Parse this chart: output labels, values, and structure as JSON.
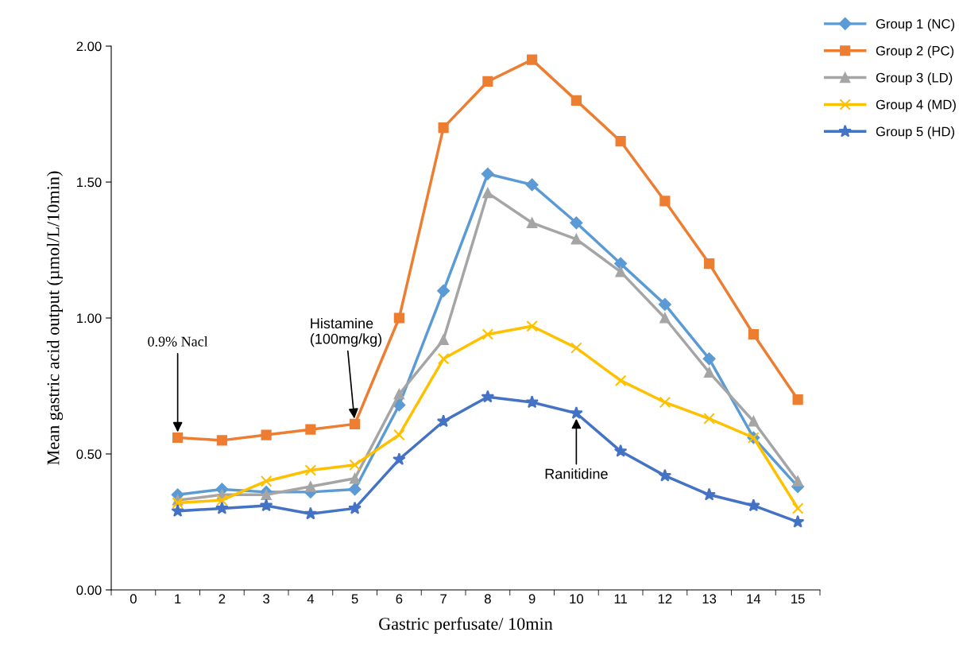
{
  "chart_data": {
    "type": "line",
    "xlabel": "Gastric perfusate/ 10min",
    "ylabel": "Mean gastric acid output (µmol/L/10min)",
    "categories": [
      "0",
      "1",
      "2",
      "3",
      "4",
      "5",
      "6",
      "7",
      "8",
      "9",
      "10",
      "11",
      "12",
      "13",
      "14",
      "15"
    ],
    "ylim": [
      0,
      2
    ],
    "yticks": [
      {
        "value": 0,
        "label": "0.00"
      },
      {
        "value": 0.5,
        "label": "0.50"
      },
      {
        "value": 1,
        "label": "1.00"
      },
      {
        "value": 1.5,
        "label": "1.50"
      },
      {
        "value": 2,
        "label": "2.00"
      }
    ],
    "grid": false,
    "legend": "top right",
    "series": [
      {
        "name": "Group 1 (NC)",
        "color": "#5b9bd5",
        "marker": "diamond",
        "values": [
          null,
          0.35,
          0.37,
          0.36,
          0.36,
          0.37,
          0.68,
          1.1,
          1.53,
          1.49,
          1.35,
          1.2,
          1.05,
          0.85,
          0.56,
          0.38
        ]
      },
      {
        "name": "Group 2 (PC)",
        "color": "#ed7d31",
        "marker": "square",
        "values": [
          null,
          0.56,
          0.55,
          0.57,
          0.59,
          0.61,
          1.0,
          1.7,
          1.87,
          1.95,
          1.8,
          1.65,
          1.43,
          1.2,
          0.94,
          0.7
        ]
      },
      {
        "name": "Group 3 (LD)",
        "color": "#a5a5a5",
        "marker": "triangle",
        "values": [
          null,
          0.33,
          0.35,
          0.35,
          0.38,
          0.41,
          0.72,
          0.92,
          1.46,
          1.35,
          1.29,
          1.17,
          1.0,
          0.8,
          0.62,
          0.4
        ]
      },
      {
        "name": "Group 4 (MD)",
        "color": "#ffc000",
        "marker": "cross",
        "values": [
          null,
          0.32,
          0.33,
          0.4,
          0.44,
          0.46,
          0.57,
          0.85,
          0.94,
          0.97,
          0.89,
          0.77,
          0.69,
          0.63,
          0.56,
          0.3
        ]
      },
      {
        "name": "Group 5 (HD)",
        "color": "#4472c4",
        "marker": "star",
        "values": [
          null,
          0.29,
          0.3,
          0.31,
          0.28,
          0.3,
          0.48,
          0.62,
          0.71,
          0.69,
          0.65,
          0.51,
          0.42,
          0.35,
          0.31,
          0.25
        ]
      }
    ],
    "annotations": [
      {
        "text": "0.9% Nacl",
        "x": "1",
        "y": 0.56
      },
      {
        "text": "Histamine\n(100mg/kg)",
        "x": "5",
        "y": 0.61
      },
      {
        "text": "Ranitidine",
        "x": "10",
        "y": 0.65
      }
    ]
  }
}
